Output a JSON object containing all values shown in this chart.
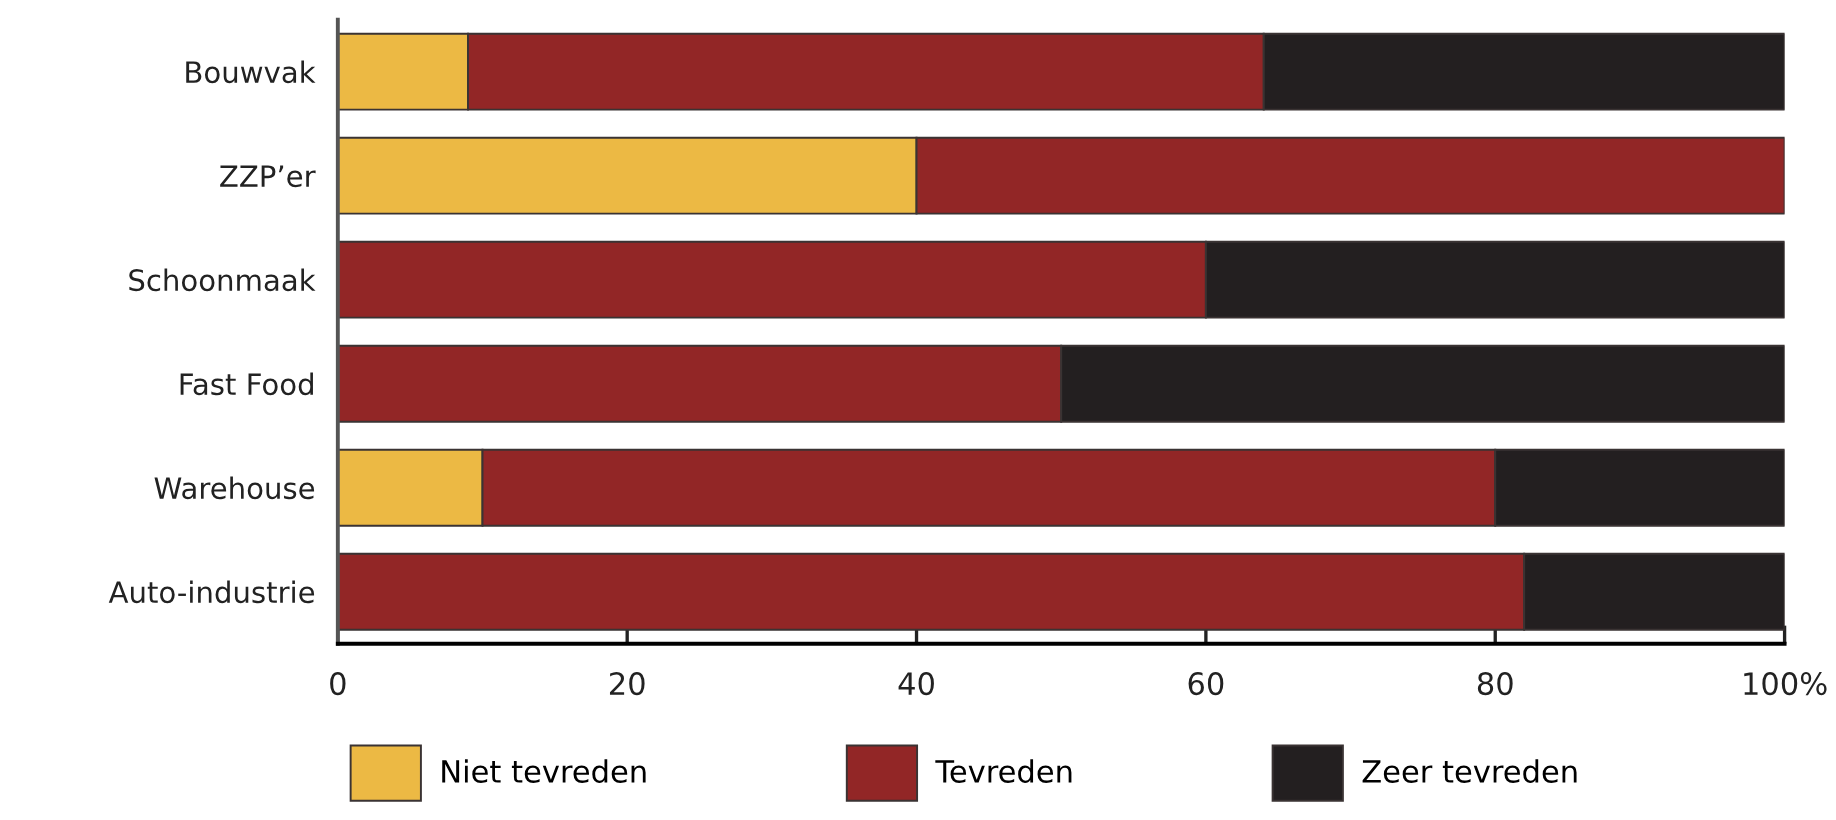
{
  "chart_data": {
    "type": "bar",
    "orientation": "horizontal",
    "stacked": true,
    "categories": [
      "Bouwvak",
      "ZZP’er",
      "Schoonmaak",
      "Fast Food",
      "Warehouse",
      "Auto-industrie"
    ],
    "series": [
      {
        "name": "Niet tevreden",
        "color": "#ecb944",
        "values": [
          9,
          40,
          0,
          0,
          10,
          0
        ]
      },
      {
        "name": "Tevreden",
        "color": "#922626",
        "values": [
          55,
          60,
          60,
          50,
          70,
          82
        ]
      },
      {
        "name": "Zeer tevreden",
        "color": "#231f20",
        "values": [
          36,
          0,
          40,
          50,
          20,
          18
        ]
      }
    ],
    "xlim": [
      0,
      100
    ],
    "xticks": [
      0,
      20,
      40,
      60,
      80,
      {
        "value": 100,
        "label": "100%"
      }
    ],
    "legend": "bottom"
  }
}
